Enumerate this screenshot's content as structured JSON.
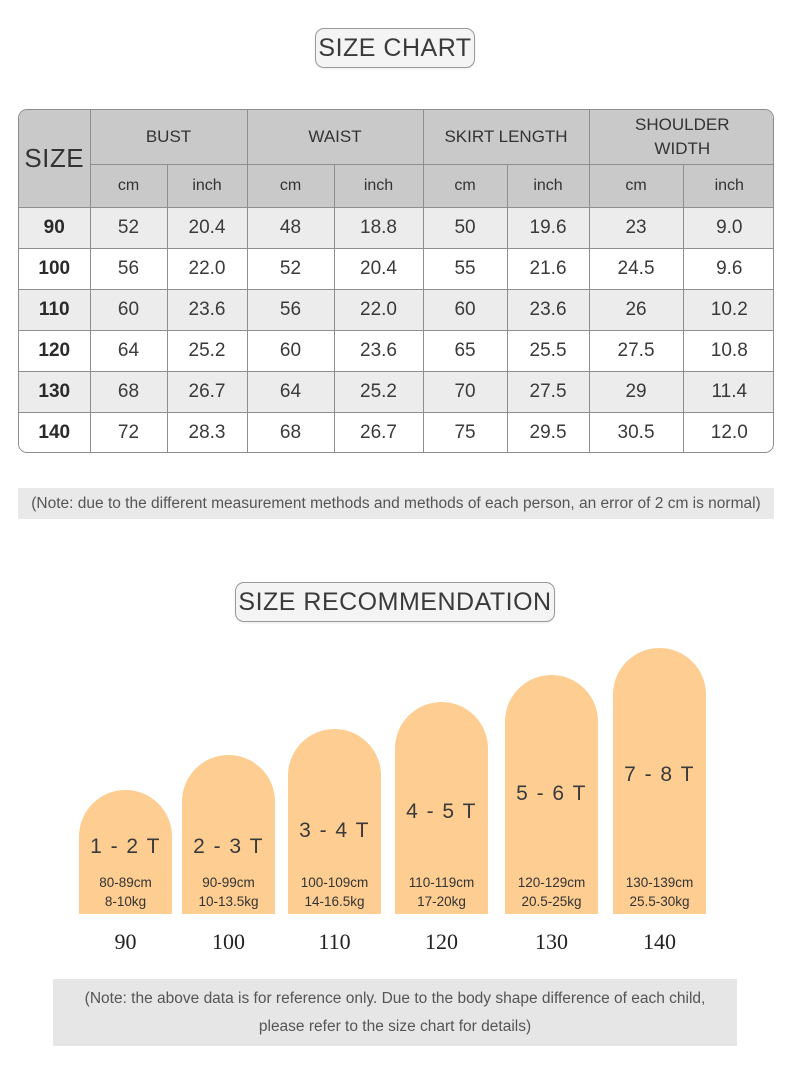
{
  "size_chart": {
    "title": "SIZE CHART",
    "size_header": "SIZE",
    "groups": [
      "BUST",
      "WAIST",
      "SKIRT LENGTH",
      "SHOULDER WIDTH"
    ],
    "units": [
      "cm",
      "inch",
      "cm",
      "inch",
      "cm",
      "inch",
      "cm",
      "inch"
    ],
    "rows": [
      {
        "size": "90",
        "values": [
          "52",
          "20.4",
          "48",
          "18.8",
          "50",
          "19.6",
          "23",
          "9.0"
        ]
      },
      {
        "size": "100",
        "values": [
          "56",
          "22.0",
          "52",
          "20.4",
          "55",
          "21.6",
          "24.5",
          "9.6"
        ]
      },
      {
        "size": "110",
        "values": [
          "60",
          "23.6",
          "56",
          "22.0",
          "60",
          "23.6",
          "26",
          "10.2"
        ]
      },
      {
        "size": "120",
        "values": [
          "64",
          "25.2",
          "60",
          "23.6",
          "65",
          "25.5",
          "27.5",
          "10.8"
        ]
      },
      {
        "size": "130",
        "values": [
          "68",
          "26.7",
          "64",
          "25.2",
          "70",
          "27.5",
          "29",
          "11.4"
        ]
      },
      {
        "size": "140",
        "values": [
          "72",
          "28.3",
          "68",
          "26.7",
          "75",
          "29.5",
          "30.5",
          "12.0"
        ]
      }
    ],
    "note": "(Note: due to the different measurement methods and methods of each person, an error of 2 cm is normal)"
  },
  "size_recommendation": {
    "title": "SIZE RECOMMENDATION",
    "bar_color": "#fdcd92",
    "items": [
      {
        "age": "1 - 2 T",
        "height": "80-89cm",
        "weight": "8-10kg",
        "size": "90"
      },
      {
        "age": "2 - 3 T",
        "height": "90-99cm",
        "weight": "10-13.5kg",
        "size": "100"
      },
      {
        "age": "3 - 4 T",
        "height": "100-109cm",
        "weight": "14-16.5kg",
        "size": "110"
      },
      {
        "age": "4 - 5 T",
        "height": "110-119cm",
        "weight": "17-20kg",
        "size": "120"
      },
      {
        "age": "5 - 6 T",
        "height": "120-129cm",
        "weight": "20.5-25kg",
        "size": "130"
      },
      {
        "age": "7 - 8 T",
        "height": "130-139cm",
        "weight": "25.5-30kg",
        "size": "140"
      }
    ],
    "note_line1": "(Note: the above data is for reference only. Due to the body shape difference of each child,",
    "note_line2": "please refer to the size chart for details)"
  }
}
